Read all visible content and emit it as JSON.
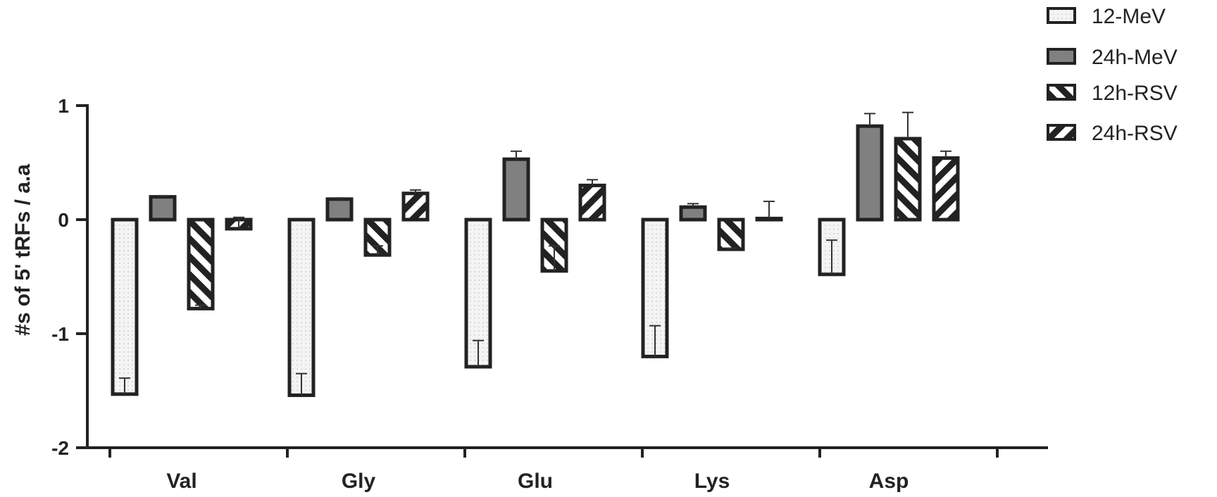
{
  "chart_data": {
    "type": "bar",
    "title": "",
    "xlabel": "",
    "ylabel": "#s of 5' tRFs / a.a",
    "ylim": [
      -2,
      1
    ],
    "yticks": [
      1,
      0,
      -1,
      -2
    ],
    "yticks_labels": [
      "1",
      "0",
      "-1",
      "-2"
    ],
    "grid": false,
    "legend_position": "top-right",
    "categories": [
      "Val",
      "Gly",
      "Glu",
      "Lys",
      "Asp"
    ],
    "series": [
      {
        "name": "12-MeV",
        "fill": "dotted",
        "color": "#f4f4f4",
        "values": [
          -1.53,
          -1.54,
          -1.29,
          -1.2,
          -0.48
        ],
        "errors": [
          0.14,
          0.19,
          0.23,
          0.27,
          0.3
        ]
      },
      {
        "name": "24h-MeV",
        "fill": "solid",
        "color": "#808080",
        "values": [
          0.2,
          0.18,
          0.53,
          0.11,
          0.82
        ],
        "errors": [
          0.01,
          0.01,
          0.07,
          0.03,
          0.11
        ]
      },
      {
        "name": "12h-RSV",
        "fill": "hatch-backward",
        "color": "#222222",
        "values": [
          -0.78,
          -0.31,
          -0.45,
          -0.26,
          0.71
        ],
        "errors": [
          0.03,
          0.08,
          0.22,
          0.01,
          0.23
        ]
      },
      {
        "name": "24h-RSV",
        "fill": "hatch-forward",
        "color": "#222222",
        "values": [
          -0.08,
          0.23,
          0.3,
          0.01,
          0.54
        ],
        "errors": [
          0.1,
          0.03,
          0.05,
          0.15,
          0.06
        ]
      }
    ]
  }
}
